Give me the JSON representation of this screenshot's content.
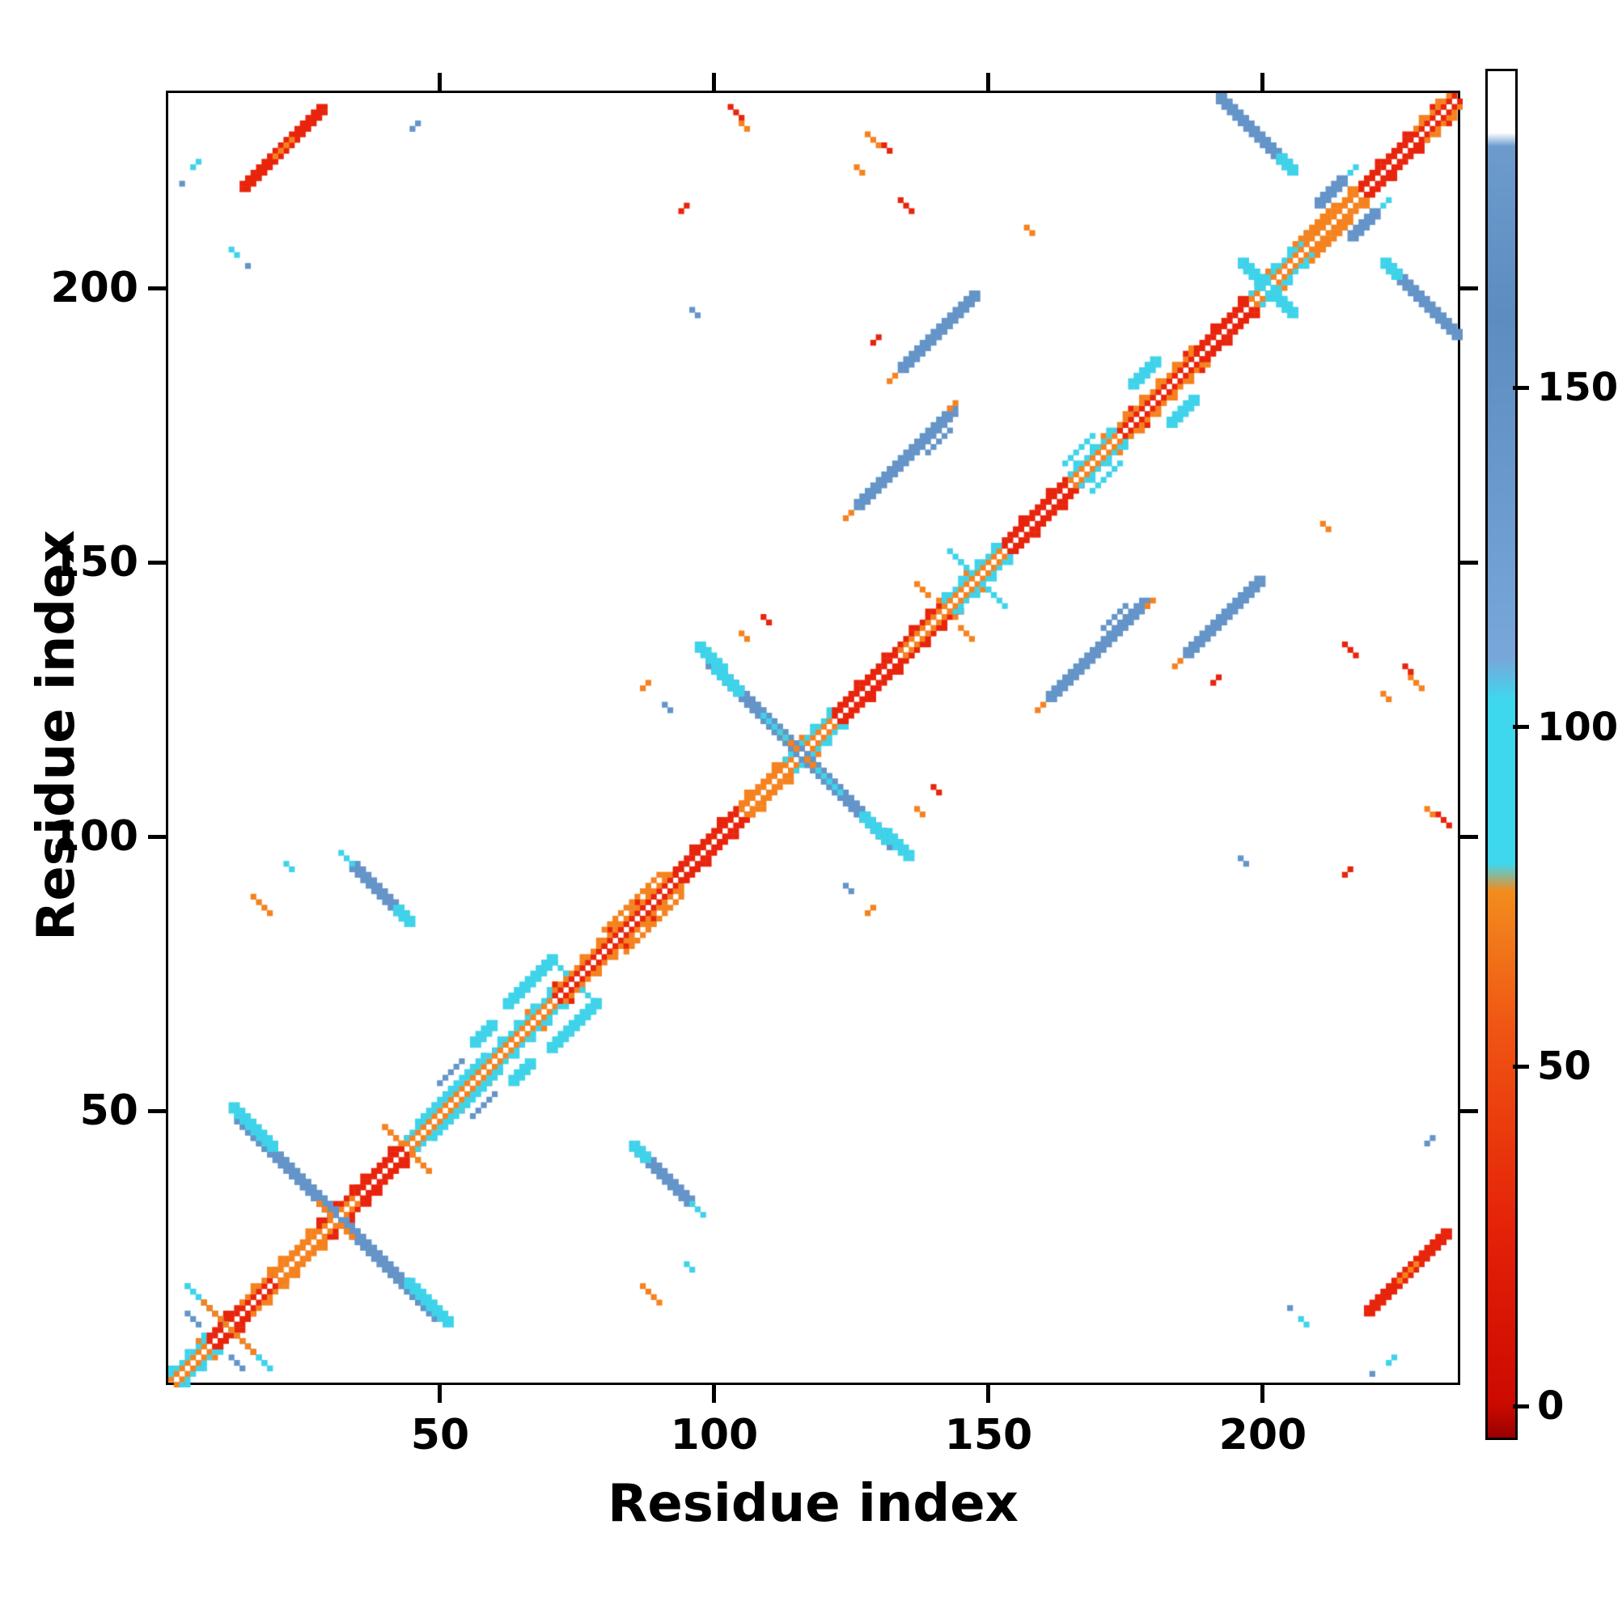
{
  "figure": {
    "background": "#ffffff",
    "frame_color": "#000000"
  },
  "palette": {
    "red": "#e8240c",
    "orange": "#f5821f",
    "cyan": "#3fd3ea",
    "blue": "#6494c8",
    "white": "#ffffff"
  },
  "axes": {
    "xlabel": "Residue index",
    "ylabel": "Residue index",
    "xtick_values": [
      50,
      100,
      150,
      200
    ],
    "ytick_values": [
      50,
      100,
      150,
      200
    ],
    "rmin": 0,
    "rmax": 236
  },
  "colorbar": {
    "tick_values": [
      0,
      50,
      100,
      150
    ],
    "vmin": -5,
    "vmax": 197,
    "stops": [
      {
        "p": 0,
        "c": "#990000"
      },
      {
        "p": 2.5,
        "c": "#cc0a00"
      },
      {
        "p": 15,
        "c": "#e42108"
      },
      {
        "p": 30,
        "c": "#ef5513"
      },
      {
        "p": 40,
        "c": "#f28c1e"
      },
      {
        "p": 42,
        "c": "#3fd7ee"
      },
      {
        "p": 54,
        "c": "#3fd7ee"
      },
      {
        "p": 57,
        "c": "#78a7da"
      },
      {
        "p": 82,
        "c": "#5c8cc0"
      },
      {
        "p": 94.5,
        "c": "#6d9bcd"
      },
      {
        "p": 95.5,
        "c": "#ffffff"
      },
      {
        "p": 100,
        "c": "#ffffff"
      }
    ]
  },
  "chart_data": {
    "type": "heatmap",
    "title": "",
    "xlabel": "Residue index",
    "ylabel": "Residue index",
    "xlim": [
      0,
      236
    ],
    "ylim": [
      0,
      236
    ],
    "n_residues": 236,
    "symmetric": true,
    "colorbar_range": [
      0,
      165
    ],
    "colorbar_ticks": [
      0,
      50,
      100,
      150
    ],
    "diagonal_runs": [
      {
        "from": 0,
        "to": 7,
        "c1": "orange",
        "c2": "cyan"
      },
      {
        "from": 7,
        "to": 13,
        "c1": "red",
        "c2": "red"
      },
      {
        "from": 13,
        "to": 19,
        "c1": "red",
        "c2": "orange"
      },
      {
        "from": 19,
        "to": 27,
        "c1": "orange",
        "c2": "orange"
      },
      {
        "from": 27,
        "to": 34,
        "c1": "orange",
        "c2": "red"
      },
      {
        "from": 34,
        "to": 43,
        "c1": "red",
        "c2": "red"
      },
      {
        "from": 43,
        "to": 62,
        "c1": "orange",
        "c2": "cyan"
      },
      {
        "from": 62,
        "to": 70,
        "c1": "orange",
        "c2": "cyan"
      },
      {
        "from": 70,
        "to": 79,
        "c1": "red",
        "c2": "orange"
      },
      {
        "from": 79,
        "to": 92,
        "c1": "red",
        "c2": "orange"
      },
      {
        "from": 92,
        "to": 104,
        "c1": "red",
        "c2": "red"
      },
      {
        "from": 104,
        "to": 112,
        "c1": "orange",
        "c2": "orange"
      },
      {
        "from": 112,
        "to": 121,
        "c1": "orange",
        "c2": "cyan"
      },
      {
        "from": 121,
        "to": 133,
        "c1": "red",
        "c2": "red"
      },
      {
        "from": 133,
        "to": 141,
        "c1": "orange",
        "c2": "red"
      },
      {
        "from": 141,
        "to": 152,
        "c1": "orange",
        "c2": "cyan"
      },
      {
        "from": 152,
        "to": 164,
        "c1": "red",
        "c2": "red"
      },
      {
        "from": 164,
        "to": 173,
        "c1": "orange",
        "c2": "cyan"
      },
      {
        "from": 173,
        "to": 187,
        "c1": "red",
        "c2": "orange"
      },
      {
        "from": 187,
        "to": 197,
        "c1": "red",
        "c2": "red"
      },
      {
        "from": 197,
        "to": 207,
        "c1": "orange",
        "c2": "cyan"
      },
      {
        "from": 207,
        "to": 217,
        "c1": "orange",
        "c2": "orange"
      },
      {
        "from": 217,
        "to": 227,
        "c1": "red",
        "c2": "red"
      },
      {
        "from": 227,
        "to": 234,
        "c1": "red",
        "c2": "orange"
      }
    ],
    "segments": [
      {
        "x": 3,
        "y": 18,
        "len": 16,
        "dir": "a",
        "c": "cyan",
        "w": 1
      },
      {
        "x": 6,
        "y": 15,
        "len": 10,
        "dir": "a",
        "c": "orange",
        "w": 1
      },
      {
        "x": 11,
        "y": 5,
        "len": 3,
        "dir": "a",
        "c": "blue",
        "w": 1
      },
      {
        "x": 12,
        "y": 48,
        "len": 35,
        "dir": "a",
        "c": "blue",
        "w": 2
      },
      {
        "x": 11,
        "y": 50,
        "len": 4,
        "dir": "a",
        "c": "cyan",
        "w": 2
      },
      {
        "x": 43,
        "y": 18,
        "len": 5,
        "dir": "a",
        "c": "cyan",
        "w": 2
      },
      {
        "x": 27,
        "y": 33,
        "len": 7,
        "dir": "a",
        "c": "orange",
        "w": 1
      },
      {
        "x": 39,
        "y": 47,
        "len": 9,
        "dir": "a",
        "c": "orange",
        "w": 1
      },
      {
        "x": 45,
        "y": 48,
        "len": 13,
        "dir": "p",
        "c": "cyan",
        "w": 1
      },
      {
        "x": 49,
        "y": 55,
        "len": 5,
        "dir": "p",
        "c": "blue",
        "w": 1
      },
      {
        "x": 55,
        "y": 62,
        "len": 4,
        "dir": "p",
        "c": "cyan",
        "w": 2
      },
      {
        "x": 61,
        "y": 69,
        "len": 9,
        "dir": "p",
        "c": "cyan",
        "w": 2
      },
      {
        "x": 70,
        "y": 77,
        "len": 3,
        "dir": "a",
        "c": "cyan",
        "w": 1
      },
      {
        "x": 79,
        "y": 83,
        "len": 11,
        "dir": "p",
        "c": "orange",
        "w": 1
      },
      {
        "x": 15,
        "y": 89,
        "len": 4,
        "dir": "a",
        "c": "orange",
        "w": 1
      },
      {
        "x": 21,
        "y": 95,
        "len": 2,
        "dir": "a",
        "c": "cyan",
        "w": 1
      },
      {
        "x": 33,
        "y": 94,
        "len": 10,
        "dir": "a",
        "c": "blue",
        "w": 2
      },
      {
        "x": 31,
        "y": 97,
        "len": 3,
        "dir": "a",
        "c": "cyan",
        "w": 1
      },
      {
        "x": 41,
        "y": 86,
        "len": 3,
        "dir": "a",
        "c": "cyan",
        "w": 2
      },
      {
        "x": 86,
        "y": 127,
        "len": 2,
        "dir": "p",
        "c": "orange",
        "w": 1
      },
      {
        "x": 90,
        "y": 124,
        "len": 2,
        "dir": "a",
        "c": "blue",
        "w": 1
      },
      {
        "x": 108,
        "y": 140,
        "len": 2,
        "dir": "a",
        "c": "red",
        "w": 1
      },
      {
        "x": 104,
        "y": 137,
        "len": 2,
        "dir": "a",
        "c": "orange",
        "w": 1
      },
      {
        "x": 98,
        "y": 131,
        "len": 34,
        "dir": "a",
        "c": "blue",
        "w": 2
      },
      {
        "x": 96,
        "y": 134,
        "len": 5,
        "dir": "a",
        "c": "cyan",
        "w": 2
      },
      {
        "x": 126,
        "y": 103,
        "len": 5,
        "dir": "a",
        "c": "cyan",
        "w": 2
      },
      {
        "x": 111,
        "y": 119,
        "len": 8,
        "dir": "a",
        "c": "orange",
        "w": 1
      },
      {
        "x": 108,
        "y": 122,
        "len": 5,
        "dir": "a",
        "c": "cyan",
        "w": 1
      },
      {
        "x": 142,
        "y": 152,
        "len": 9,
        "dir": "a",
        "c": "cyan",
        "w": 1
      },
      {
        "x": 136,
        "y": 146,
        "len": 3,
        "dir": "a",
        "c": "orange",
        "w": 1
      },
      {
        "x": 125,
        "y": 160,
        "len": 18,
        "dir": "p",
        "c": "blue",
        "w": 2
      },
      {
        "x": 123,
        "y": 158,
        "len": 2,
        "dir": "p",
        "c": "orange",
        "w": 1
      },
      {
        "x": 142,
        "y": 178,
        "len": 2,
        "dir": "p",
        "c": "orange",
        "w": 1
      },
      {
        "x": 138,
        "y": 170,
        "len": 5,
        "dir": "p",
        "c": "blue",
        "w": 1
      },
      {
        "x": 133,
        "y": 185,
        "len": 14,
        "dir": "p",
        "c": "blue",
        "w": 2
      },
      {
        "x": 131,
        "y": 183,
        "len": 2,
        "dir": "p",
        "c": "orange",
        "w": 1
      },
      {
        "x": 128,
        "y": 190,
        "len": 2,
        "dir": "p",
        "c": "red",
        "w": 1
      },
      {
        "x": 163,
        "y": 168,
        "len": 6,
        "dir": "p",
        "c": "cyan",
        "w": 1
      },
      {
        "x": 175,
        "y": 182,
        "len": 5,
        "dir": "p",
        "c": "cyan",
        "w": 2
      },
      {
        "x": 156,
        "y": 211,
        "len": 2,
        "dir": "a",
        "c": "orange",
        "w": 1
      },
      {
        "x": 191,
        "y": 234,
        "len": 13,
        "dir": "a",
        "c": "blue",
        "w": 2
      },
      {
        "x": 202,
        "y": 223,
        "len": 3,
        "dir": "a",
        "c": "cyan",
        "w": 2
      },
      {
        "x": 195,
        "y": 204,
        "len": 9,
        "dir": "a",
        "c": "cyan",
        "w": 2
      },
      {
        "x": 209,
        "y": 215,
        "len": 5,
        "dir": "p",
        "c": "blue",
        "w": 2
      },
      {
        "x": 215,
        "y": 221,
        "len": 2,
        "dir": "p",
        "c": "cyan",
        "w": 1
      },
      {
        "x": 205,
        "y": 208,
        "len": 8,
        "dir": "p",
        "c": "orange",
        "w": 1
      },
      {
        "x": 13,
        "y": 218,
        "len": 15,
        "dir": "p",
        "c": "red",
        "w": 2
      },
      {
        "x": 19,
        "y": 224,
        "len": 4,
        "dir": "p",
        "c": "orange",
        "w": 1
      },
      {
        "x": 102,
        "y": 233,
        "len": 3,
        "dir": "a",
        "c": "red",
        "w": 1
      },
      {
        "x": 104,
        "y": 230,
        "len": 2,
        "dir": "a",
        "c": "orange",
        "w": 1
      },
      {
        "x": 127,
        "y": 228,
        "len": 3,
        "dir": "a",
        "c": "orange",
        "w": 1
      },
      {
        "x": 130,
        "y": 226,
        "len": 2,
        "dir": "a",
        "c": "red",
        "w": 1
      },
      {
        "x": 93,
        "y": 214,
        "len": 2,
        "dir": "p",
        "c": "red",
        "w": 1
      },
      {
        "x": 2,
        "y": 219,
        "len": 1,
        "dir": "p",
        "c": "blue",
        "w": 1
      },
      {
        "x": 11,
        "y": 207,
        "len": 2,
        "dir": "a",
        "c": "cyan",
        "w": 1
      },
      {
        "x": 14,
        "y": 204,
        "len": 1,
        "dir": "p",
        "c": "blue",
        "w": 1
      },
      {
        "x": 229,
        "y": 44,
        "len": 2,
        "dir": "p",
        "c": "blue",
        "w": 1
      },
      {
        "x": 222,
        "y": 4,
        "len": 2,
        "dir": "p",
        "c": "cyan",
        "w": 1
      },
      {
        "x": 195,
        "y": 96,
        "len": 2,
        "dir": "a",
        "c": "blue",
        "w": 1
      },
      {
        "x": 214,
        "y": 135,
        "len": 3,
        "dir": "a",
        "c": "red",
        "w": 1
      },
      {
        "x": 221,
        "y": 126,
        "len": 2,
        "dir": "a",
        "c": "orange",
        "w": 1
      }
    ]
  }
}
